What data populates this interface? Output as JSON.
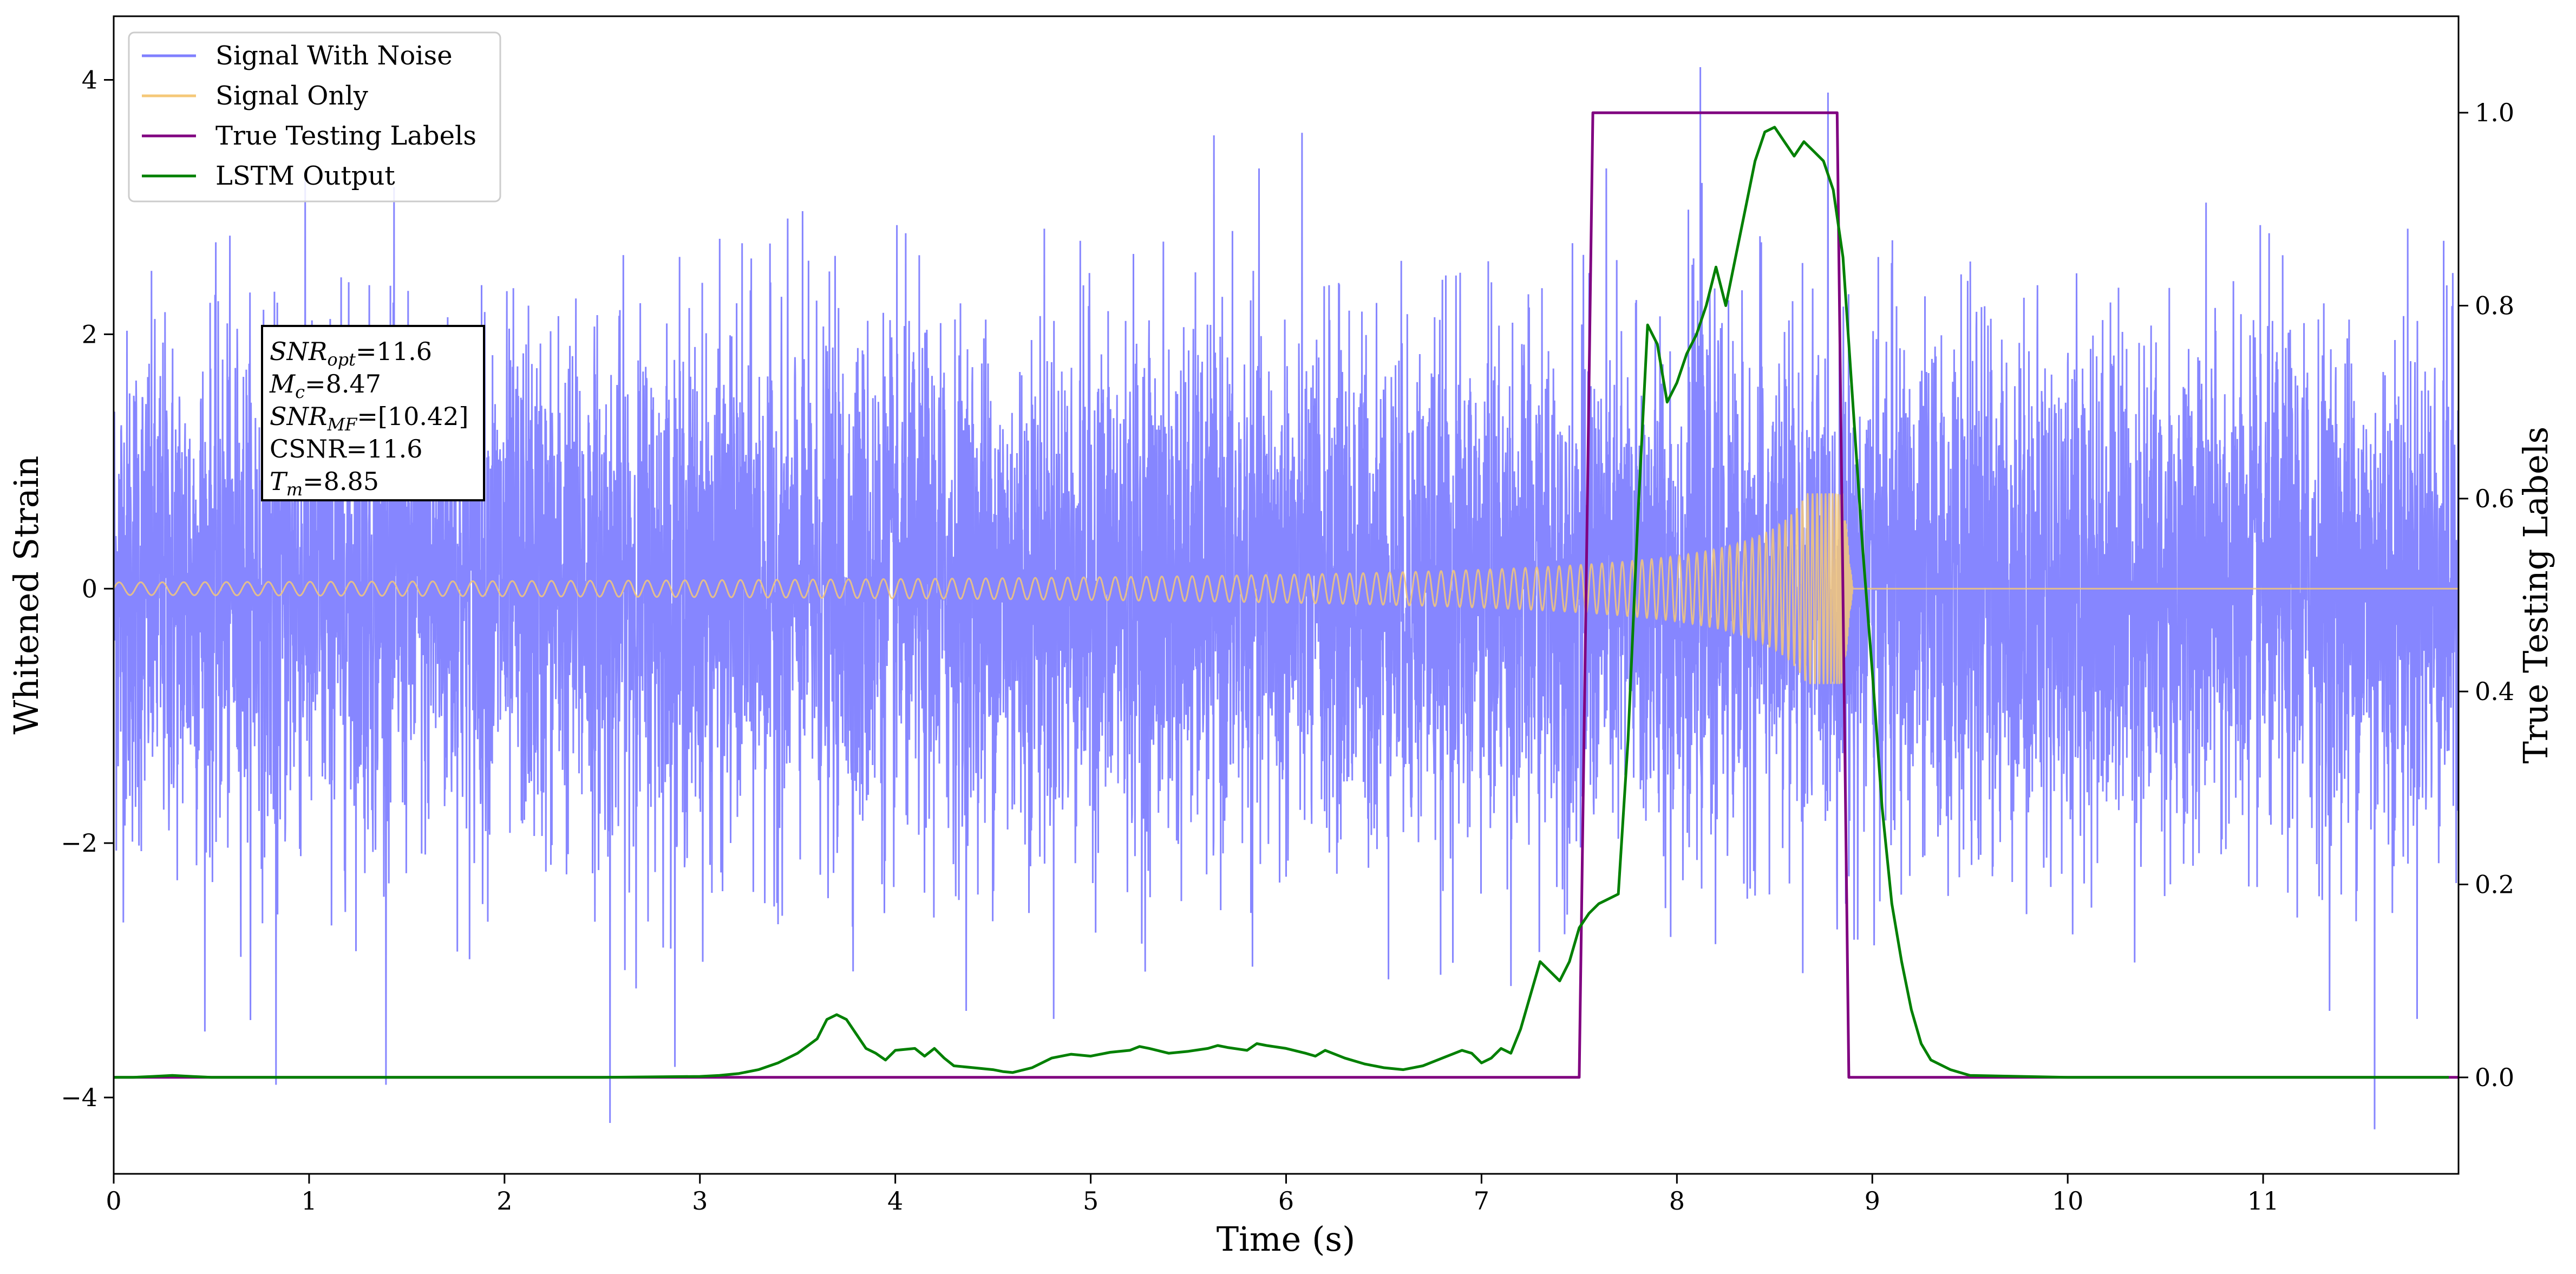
{
  "chart_data": {
    "type": "line",
    "title": "",
    "xlabel": "Time (s)",
    "ylabel_left": "Whitened Strain",
    "ylabel_right": "True Testing Labels",
    "xlim": [
      0,
      12
    ],
    "ylim_left": [
      -4.6,
      4.5
    ],
    "ylim_right": [
      -0.1,
      1.1
    ],
    "x_ticks": [
      0,
      1,
      2,
      3,
      4,
      5,
      6,
      7,
      8,
      9,
      10,
      11
    ],
    "x_tick_labels": [
      "0",
      "1",
      "2",
      "3",
      "4",
      "5",
      "6",
      "7",
      "8",
      "9",
      "10",
      "11"
    ],
    "y_left_ticks": [
      -4,
      -2,
      0,
      2,
      4
    ],
    "y_left_tick_labels": [
      "−4",
      "−2",
      "0",
      "2",
      "4"
    ],
    "y_right_ticks": [
      0.0,
      0.2,
      0.4,
      0.6,
      0.8,
      1.0
    ],
    "y_right_tick_labels": [
      "0.0",
      "0.2",
      "0.4",
      "0.6",
      "0.8",
      "1.0"
    ],
    "grid": false,
    "legend_position": "top-left",
    "series": [
      {
        "name": "Signal With Noise",
        "axis": "left",
        "color": "#8080ff",
        "kind": "noise",
        "noise_std": 1.0,
        "outliers": [
          [
            0.83,
            -3.9
          ],
          [
            2.54,
            -4.2
          ],
          [
            8.12,
            4.1
          ],
          [
            11.57,
            -4.25
          ]
        ]
      },
      {
        "name": "Signal Only",
        "axis": "left",
        "color": "#f5c878",
        "kind": "chirp",
        "start_amplitude": 0.05,
        "end_amplitude": 0.75,
        "merger_time": 8.85,
        "ringdown_end": 8.9
      },
      {
        "name": "True Testing Labels",
        "axis": "right",
        "color": "#800080",
        "x": [
          0,
          7.5,
          7.57,
          8.82,
          8.88,
          12
        ],
        "y": [
          0,
          0,
          1,
          1,
          0,
          0
        ]
      },
      {
        "name": "LSTM Output",
        "axis": "right",
        "color": "#008000",
        "x": [
          0,
          0.1,
          0.2,
          0.3,
          0.4,
          0.5,
          1,
          2,
          2.5,
          3,
          3.1,
          3.2,
          3.3,
          3.4,
          3.5,
          3.6,
          3.65,
          3.7,
          3.75,
          3.8,
          3.85,
          3.9,
          3.95,
          4.0,
          4.1,
          4.15,
          4.2,
          4.25,
          4.3,
          4.4,
          4.5,
          4.55,
          4.6,
          4.7,
          4.8,
          4.9,
          5.0,
          5.1,
          5.2,
          5.25,
          5.3,
          5.4,
          5.5,
          5.6,
          5.65,
          5.7,
          5.8,
          5.85,
          5.9,
          6.0,
          6.1,
          6.15,
          6.2,
          6.3,
          6.4,
          6.5,
          6.6,
          6.7,
          6.8,
          6.85,
          6.9,
          6.95,
          7.0,
          7.05,
          7.1,
          7.15,
          7.2,
          7.25,
          7.3,
          7.35,
          7.4,
          7.45,
          7.5,
          7.55,
          7.6,
          7.65,
          7.7,
          7.75,
          7.8,
          7.85,
          7.9,
          7.95,
          8.0,
          8.05,
          8.1,
          8.15,
          8.2,
          8.25,
          8.3,
          8.35,
          8.4,
          8.45,
          8.5,
          8.55,
          8.6,
          8.65,
          8.7,
          8.75,
          8.8,
          8.85,
          8.9,
          8.95,
          9.0,
          9.05,
          9.1,
          9.15,
          9.2,
          9.25,
          9.3,
          9.4,
          9.5,
          10,
          11,
          11.95
        ],
        "y": [
          0,
          0,
          0.001,
          0.002,
          0.001,
          0,
          0,
          0,
          0,
          0.001,
          0.002,
          0.004,
          0.008,
          0.015,
          0.025,
          0.04,
          0.06,
          0.065,
          0.06,
          0.045,
          0.03,
          0.025,
          0.018,
          0.028,
          0.03,
          0.022,
          0.03,
          0.02,
          0.012,
          0.01,
          0.008,
          0.006,
          0.005,
          0.01,
          0.02,
          0.024,
          0.022,
          0.026,
          0.028,
          0.032,
          0.03,
          0.025,
          0.027,
          0.03,
          0.033,
          0.031,
          0.028,
          0.035,
          0.033,
          0.03,
          0.025,
          0.022,
          0.028,
          0.02,
          0.014,
          0.01,
          0.008,
          0.012,
          0.02,
          0.024,
          0.028,
          0.025,
          0.015,
          0.02,
          0.03,
          0.025,
          0.05,
          0.085,
          0.12,
          0.11,
          0.1,
          0.12,
          0.155,
          0.17,
          0.18,
          0.185,
          0.19,
          0.35,
          0.58,
          0.78,
          0.76,
          0.7,
          0.72,
          0.75,
          0.77,
          0.8,
          0.84,
          0.8,
          0.85,
          0.9,
          0.95,
          0.98,
          0.985,
          0.97,
          0.955,
          0.97,
          0.96,
          0.95,
          0.92,
          0.85,
          0.7,
          0.55,
          0.42,
          0.28,
          0.18,
          0.12,
          0.07,
          0.035,
          0.018,
          0.008,
          0.002,
          0,
          0,
          0
        ]
      }
    ],
    "annotation": {
      "lines": [
        {
          "base": "SNR",
          "sub": "opt",
          "value": "=11.6"
        },
        {
          "base": "M",
          "sub": "c",
          "value": "=8.47"
        },
        {
          "base": "SNR",
          "sub": "MF",
          "value": "=[10.42]"
        },
        {
          "base": "CSNR",
          "sub": "",
          "value": "=11.6"
        },
        {
          "base": "T",
          "sub": "m",
          "value": "=8.85"
        }
      ]
    }
  }
}
